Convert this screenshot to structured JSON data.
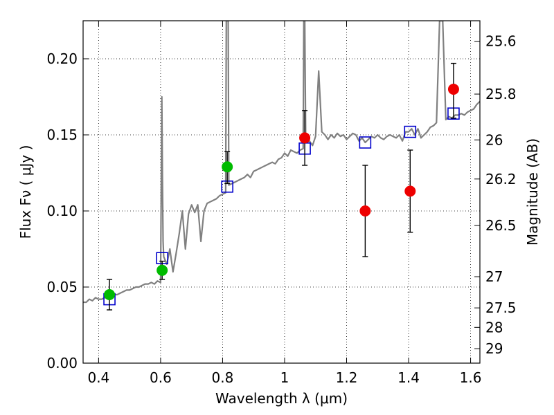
{
  "chart_data": {
    "type": "scatter",
    "xlabel": "Wavelength  λ (μm)",
    "ylabel": "Flux  Fν  ( μJy )",
    "y2label": "Magnitude (AB)",
    "xlim": [
      0.35,
      1.63
    ],
    "ylim": [
      0.0,
      0.225
    ],
    "grid": true,
    "x_ticks": [
      0.4,
      0.6,
      0.8,
      1.0,
      1.2,
      1.4,
      1.6
    ],
    "x_tick_labels": [
      "0.4",
      "0.6",
      "0.8",
      "1",
      "1.2",
      "1.4",
      "1.6"
    ],
    "y_ticks": [
      0.0,
      0.05,
      0.1,
      0.15,
      0.2
    ],
    "y_tick_labels": [
      "0.00",
      "0.05",
      "0.10",
      "0.15",
      "0.20"
    ],
    "y2_ticks": [
      {
        "flux": 0.2115,
        "label": "25.6"
      },
      {
        "flux": 0.1768,
        "label": "25.8"
      },
      {
        "flux": 0.1467,
        "label": "26"
      },
      {
        "flux": 0.121,
        "label": "26.2"
      },
      {
        "flux": 0.0905,
        "label": "26.5"
      },
      {
        "flux": 0.0568,
        "label": "27"
      },
      {
        "flux": 0.0363,
        "label": "27.5"
      },
      {
        "flux": 0.0235,
        "label": "28"
      },
      {
        "flux": 0.0095,
        "label": "29"
      }
    ],
    "series": [
      {
        "kind": "line",
        "color": "#808080",
        "x": [
          0.35,
          0.36,
          0.37,
          0.38,
          0.39,
          0.4,
          0.41,
          0.42,
          0.43,
          0.44,
          0.45,
          0.46,
          0.47,
          0.48,
          0.49,
          0.5,
          0.51,
          0.52,
          0.53,
          0.54,
          0.55,
          0.56,
          0.57,
          0.58,
          0.59,
          0.6,
          0.604,
          0.606,
          0.608,
          0.61,
          0.62,
          0.63,
          0.64,
          0.65,
          0.66,
          0.67,
          0.68,
          0.69,
          0.7,
          0.71,
          0.72,
          0.73,
          0.74,
          0.75,
          0.76,
          0.77,
          0.78,
          0.79,
          0.8,
          0.81,
          0.812,
          0.815,
          0.818,
          0.82,
          0.83,
          0.84,
          0.85,
          0.86,
          0.87,
          0.88,
          0.89,
          0.9,
          0.91,
          0.92,
          0.93,
          0.94,
          0.95,
          0.96,
          0.97,
          0.98,
          0.99,
          1.0,
          1.01,
          1.02,
          1.03,
          1.04,
          1.05,
          1.06,
          1.062,
          1.065,
          1.068,
          1.07,
          1.08,
          1.09,
          1.1,
          1.11,
          1.12,
          1.13,
          1.14,
          1.15,
          1.16,
          1.17,
          1.18,
          1.19,
          1.2,
          1.21,
          1.22,
          1.23,
          1.24,
          1.25,
          1.26,
          1.27,
          1.28,
          1.29,
          1.3,
          1.31,
          1.32,
          1.33,
          1.34,
          1.35,
          1.36,
          1.37,
          1.38,
          1.39,
          1.4,
          1.41,
          1.42,
          1.43,
          1.44,
          1.45,
          1.46,
          1.47,
          1.48,
          1.49,
          1.5,
          1.51,
          1.52,
          1.53,
          1.54,
          1.55,
          1.56,
          1.57,
          1.58,
          1.59,
          1.6,
          1.61,
          1.62,
          1.63
        ],
        "y": [
          0.04,
          0.04,
          0.042,
          0.041,
          0.043,
          0.042,
          0.042,
          0.043,
          0.043,
          0.044,
          0.045,
          0.045,
          0.046,
          0.047,
          0.048,
          0.048,
          0.049,
          0.05,
          0.05,
          0.051,
          0.052,
          0.052,
          0.053,
          0.052,
          0.054,
          0.053,
          0.175,
          0.12,
          0.08,
          0.07,
          0.065,
          0.075,
          0.06,
          0.072,
          0.085,
          0.1,
          0.075,
          0.098,
          0.104,
          0.099,
          0.104,
          0.08,
          0.1,
          0.105,
          0.106,
          0.107,
          0.108,
          0.11,
          0.111,
          0.112,
          0.225,
          0.225,
          0.225,
          0.117,
          0.118,
          0.119,
          0.12,
          0.121,
          0.122,
          0.124,
          0.122,
          0.126,
          0.127,
          0.128,
          0.129,
          0.13,
          0.131,
          0.132,
          0.131,
          0.134,
          0.135,
          0.138,
          0.136,
          0.14,
          0.139,
          0.138,
          0.14,
          0.141,
          0.225,
          0.225,
          0.15,
          0.145,
          0.146,
          0.143,
          0.149,
          0.192,
          0.152,
          0.15,
          0.147,
          0.15,
          0.148,
          0.151,
          0.149,
          0.15,
          0.147,
          0.149,
          0.151,
          0.15,
          0.146,
          0.148,
          0.145,
          0.147,
          0.149,
          0.148,
          0.15,
          0.148,
          0.147,
          0.149,
          0.15,
          0.149,
          0.148,
          0.15,
          0.146,
          0.152,
          0.152,
          0.154,
          0.15,
          0.154,
          0.148,
          0.15,
          0.152,
          0.155,
          0.156,
          0.158,
          0.225,
          0.225,
          0.16,
          0.162,
          0.161,
          0.163,
          0.163,
          0.164,
          0.163,
          0.165,
          0.166,
          0.167,
          0.17,
          0.172
        ]
      },
      {
        "kind": "open-square",
        "color": "#0000cc",
        "x": [
          0.435,
          0.605,
          0.815,
          1.065,
          1.26,
          1.405,
          1.545
        ],
        "y": [
          0.042,
          0.069,
          0.116,
          0.141,
          0.145,
          0.152,
          0.164
        ]
      },
      {
        "kind": "point",
        "color": "#00bb00",
        "x": [
          0.435,
          0.605,
          0.815
        ],
        "y": [
          0.045,
          0.061,
          0.129
        ],
        "err_low": [
          0.01,
          0.006,
          0.011
        ],
        "err_high": [
          0.01,
          0.006,
          0.01
        ]
      },
      {
        "kind": "point",
        "color": "#ee0000",
        "x": [
          1.065,
          1.26,
          1.405,
          1.545
        ],
        "y": [
          0.148,
          0.1,
          0.113,
          0.18
        ],
        "err_low": [
          0.018,
          0.03,
          0.027,
          0.019
        ],
        "err_high": [
          0.018,
          0.03,
          0.027,
          0.017
        ]
      }
    ]
  }
}
